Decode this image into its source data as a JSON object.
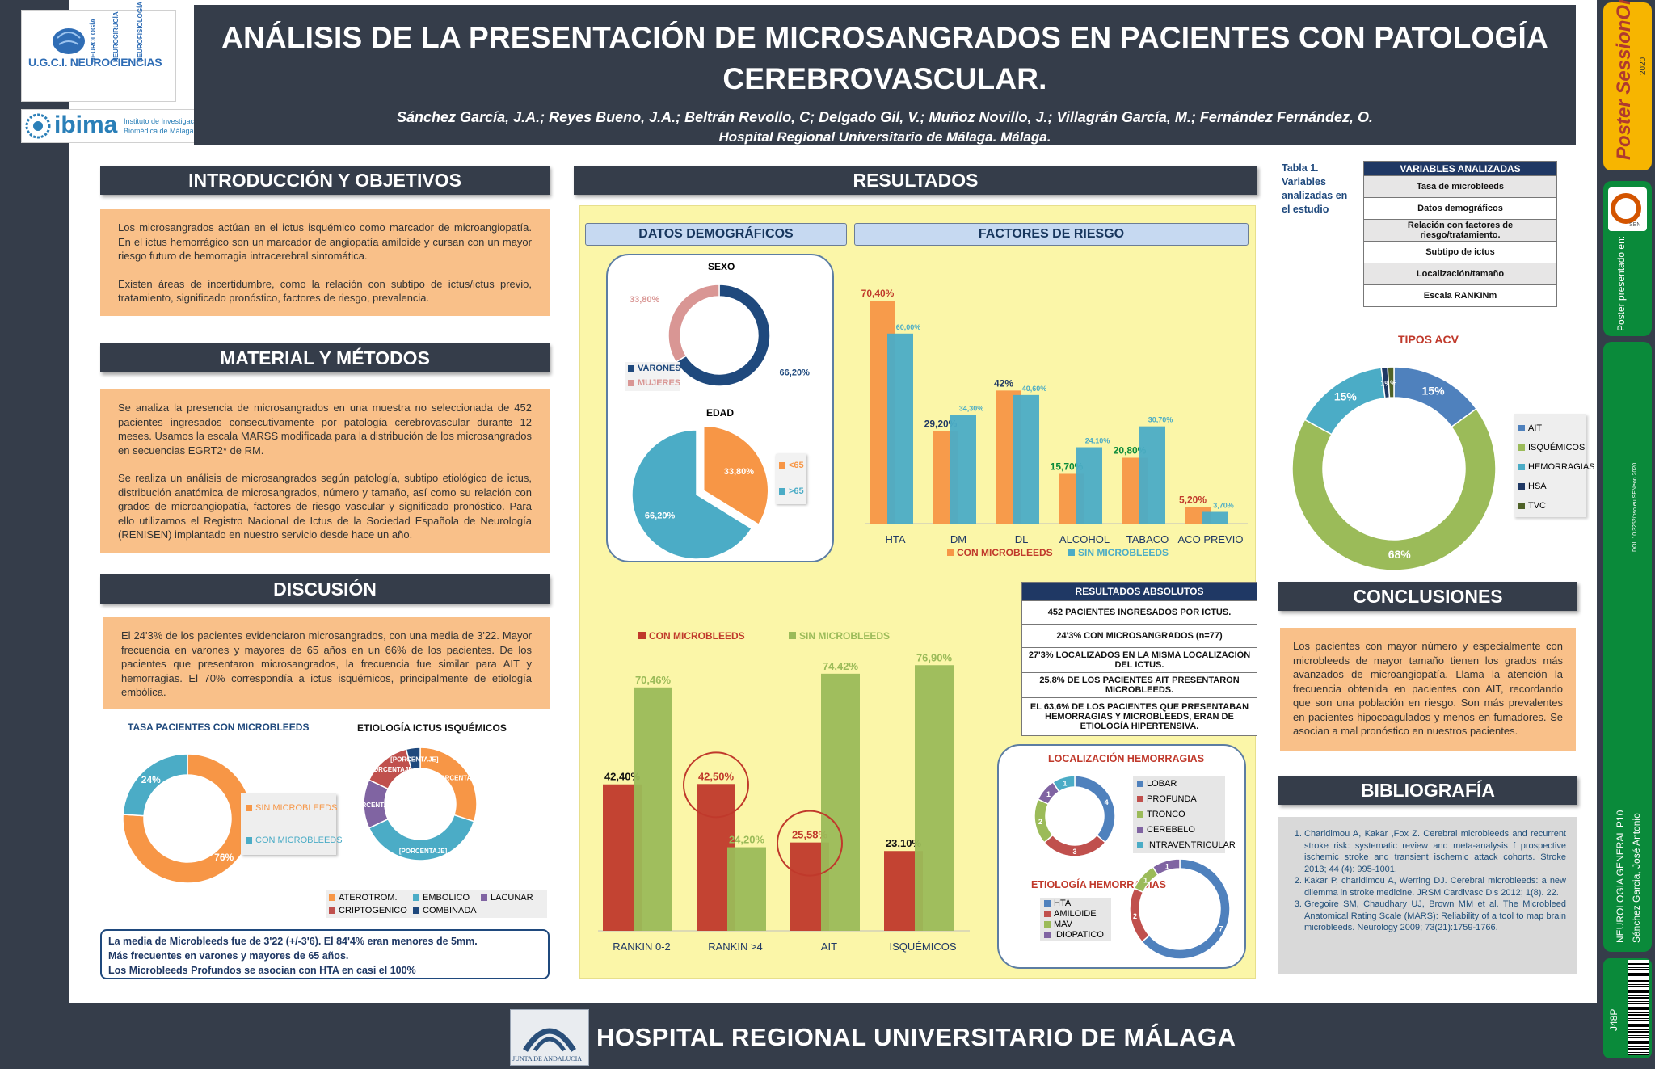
{
  "header": {
    "title_line1": "ANÁLISIS DE LA PRESENTACIÓN DE MICROSANGRADOS EN PACIENTES CON PATOLOGÍA",
    "title_line2": "CEREBROVASCULAR.",
    "authors": "Sánchez García, J.A.;  Reyes Bueno, J.A.; Beltrán Revollo, C; Delgado Gil, V.; Muñoz Novillo, J.; Villagrán García, M.; Fernández Fernández, O.",
    "hospital": "Hospital Regional Universitario de Málaga. Málaga."
  },
  "logos": {
    "ugci": "U.G.C.I. NEUROCIENCIAS",
    "ugci_words": [
      "NEUROLOGÍA",
      "NEUROCIRUGÍA",
      "NEUROFISIOLOGÍA"
    ],
    "ibima": "ibima",
    "ibima_sub1": "Instituto de Investigación",
    "ibima_sub2": "Biomédica de Málaga",
    "junta": "JUNTA DE ANDALUCIA"
  },
  "intro": {
    "heading": "INTRODUCCIÓN Y OBJETIVOS",
    "p1": "Los microsangrados actúan en el ictus isquémico como marcador de microangiopatía. En el ictus hemorrágico son un marcador de angiopatía amiloide y cursan con un mayor riesgo futuro de hemorragia intracerebral sintomática.",
    "p2": "Existen áreas de incertidumbre, como la relación con subtipo de ictus/ictus previo, tratamiento, significado pronóstico, factores de riesgo, prevalencia."
  },
  "methods": {
    "heading": "MATERIAL Y MÉTODOS",
    "p1": "Se analiza la presencia de microsangrados en una muestra no seleccionada de 452 pacientes ingresados consecutivamente por patología cerebrovascular durante 12 meses. Usamos la escala MARSS modificada para la distribución de los microsangrados en secuencias EGRT2* de RM.",
    "p2": "Se realiza un análisis de microsangrados según patología, subtipo etiológico de ictus, distribución anatómica de microsangrados, número y tamaño, así como su relación con grados de microangiopatía, factores de riesgo vascular y significado pronóstico. Para ello utilizamos el Registro Nacional de Ictus de la Sociedad Española de Neurología (RENISEN) implantado en nuestro servicio desde hace un año."
  },
  "discussion": {
    "heading": "DISCUSIÓN",
    "p1": "El 24'3% de los pacientes evidenciaron microsangrados, con una media de 3'22. Mayor frecuencia en varones y mayores de 65 años en un 66% de los pacientes. De los pacientes que presentaron microsangrados, la frecuencia fue similar para AIT y hemorragias. El 70% correspondía a ictus isquémicos, principalmente de etiología embólica."
  },
  "tasa": {
    "title": "TASA PACIENTES CON MICROBLEEDS",
    "legend": [
      "SIN MICROBLEEDS",
      "CON MICROBLEEDS"
    ],
    "labels": [
      "76%",
      "24%"
    ]
  },
  "etiologia": {
    "title": "ETIOLOGÍA ICTUS ISQUÉMICOS",
    "slice_label": "[PORCENTAJE]",
    "legend": [
      "ATEROTROM.",
      "EMBOLICO",
      "LACUNAR",
      "CRIPTOGENICO",
      "COMBINADA"
    ]
  },
  "summary": {
    "l1": "La media de Microbleeds fue de 3'22 (+/-3'6). El 84'4% eran menores de 5mm.",
    "l2": "Más frecuentes en varones y mayores de 65 años.",
    "l3": "Los Microbleeds Profundos se asocian con HTA en casi el 100%"
  },
  "results": {
    "heading": "RESULTADOS",
    "demo_heading": "DATOS DEMOGRÁFICOS",
    "risk_heading": "FACTORES DE RIESGO",
    "sexo": {
      "title": "SEXO",
      "varones": "66,20%",
      "mujeres": "33,80%",
      "legend": [
        "VARONES",
        "MUJERES"
      ]
    },
    "edad": {
      "title": "EDAD",
      "lt65": "33,80%",
      "gt65": "66,20%",
      "legend": [
        "<65",
        ">65"
      ]
    },
    "absolutos": {
      "title": "RESULTADOS ABSOLUTOS",
      "rows": [
        "452 PACIENTES INGRESADOS POR ICTUS.",
        "24'3% CON MICROSANGRADOS (n=77)",
        "27'3% LOCALIZADOS EN LA MISMA LOCALIZACIÓN DEL ICTUS.",
        "25,8% DE LOS PACIENTES AIT PRESENTARON MICROBLEEDS.",
        "EL 63,6% DE LOS PACIENTES QUE PRESENTABAN HEMORRAGIAS Y MICROBLEEDS, ERAN DE ETIOLOGÍA HIPERTENSIVA."
      ]
    },
    "loc_hem": {
      "title": "LOCALIZACIÓN HEMORRAGIAS",
      "legend": [
        "LOBAR",
        "PROFUNDA",
        "TRONCO",
        "CEREBELO",
        "INTRAVENTRICULAR"
      ],
      "labels": [
        "4",
        "3",
        "2",
        "1",
        "1"
      ]
    },
    "etio_hem": {
      "title": "ETIOLOGÍA HEMORRAGIAS",
      "legend": [
        "HTA",
        "AMILOIDE",
        "MAV",
        "IDIOPATICO"
      ],
      "labels": [
        "7",
        "2",
        "1",
        "1"
      ]
    }
  },
  "variables": {
    "caption": "Tabla 1. Variables analizadas en el estudio",
    "title": "VARIABLES ANALIZADAS",
    "rows": [
      "Tasa de microbleeds",
      "Datos demográficos",
      "Relación con factores de riesgo/tratamiento.",
      "Subtipo de ictus",
      "Localización/tamaño",
      "Escala RANKINm"
    ]
  },
  "tipos_acv": {
    "title": "TIPOS ACV",
    "legend": [
      "AIT",
      "ISQUÉMICOS",
      "HEMORRAGIAS",
      "HSA",
      "TVC"
    ],
    "labels": [
      "15%",
      "68%",
      "15%",
      "1%",
      "1%"
    ]
  },
  "conclusions": {
    "heading": "CONCLUSIONES",
    "text": "Los pacientes con mayor número y especialmente con microbleeds de mayor tamaño tienen los grados más avanzados de microangiopatía. Llama la atención la frecuencia obtenida en pacientes con AIT, recordando que son una población en riesgo. Son más prevalentes en pacientes hipocoagulados y menos en fumadores. Se asocian a mal pronóstico en nuestros pacientes."
  },
  "bibliography": {
    "heading": "BIBLIOGRAFÍA",
    "refs": [
      "Charidimou A, Kakar ,Fox Z. Cerebral microbleeds and recurrent stroke risk: systematic review and meta-analysis f prospective ischemic stroke and transient ischemic attack cohorts. Stroke 2013; 44 (4): 995-1001.",
      "Kakar P, charidimou A, Werring DJ. Cerebral microbleeds: a new dilemma in stroke medicine. JRSM Cardivasc Dis 2012; 1(8). 22.",
      "Gregoire SM, Chaudhary UJ, Brown MM et al. The Microbleed Anatomical Rating Scale (MARS): Reliability of a tool to map brain microbleeds. Neurology 2009; 73(21):1759-1766."
    ]
  },
  "footer": {
    "title": "HOSPITAL REGIONAL UNIVERSITARIO DE MÁLAGA"
  },
  "sidebar": {
    "poster_session": "Poster SessionOnline",
    "year": "2020",
    "presented": "Poster presentado en:",
    "doi": "DOI: 10.3252/pso.eu.SENeon.2020",
    "category": "NEUROLOGIA GENERAL P10",
    "author": "Sánchez Garcia, José Antonio",
    "code": "J48P",
    "sen": "SEN"
  },
  "chart_data": [
    {
      "type": "bar",
      "title": "",
      "categories": [
        "HTA",
        "DM",
        "DL",
        "ALCOHOL",
        "TABACO",
        "ACO PREVIO"
      ],
      "series": [
        {
          "name": "CON MICROBLEEDS",
          "values": [
            70.4,
            29.2,
            42,
            15.7,
            20.8,
            5.2
          ],
          "labels": [
            "70,40%",
            "29,20%",
            "42%",
            "15,70%",
            "20,80%",
            "5,20%"
          ]
        },
        {
          "name": "SIN MICROBLEEDS",
          "values": [
            60.0,
            34.3,
            40.6,
            24.1,
            30.7,
            3.7
          ],
          "labels": [
            "60,00%",
            "34,30%",
            "40,60%",
            "24,10%",
            "30,70%",
            "3,70%"
          ]
        }
      ],
      "ylim": [
        0,
        75
      ]
    },
    {
      "type": "bar",
      "title": "",
      "categories": [
        "RANKIN 0-2",
        "RANKIN >4",
        "AIT",
        "ISQUÉMICOS"
      ],
      "series": [
        {
          "name": "CON MICROBLEEDS",
          "values": [
            42.4,
            42.5,
            25.58,
            23.1
          ],
          "labels": [
            "42,40%",
            "42,50%",
            "25,58%",
            "23,10%"
          ]
        },
        {
          "name": "SIN MICROBLEEDS",
          "values": [
            70.46,
            24.2,
            74.42,
            76.9
          ],
          "labels": [
            "70,46%",
            "24,20%",
            "74,42%",
            "76,90%"
          ]
        }
      ],
      "ylim": [
        0,
        80
      ]
    },
    {
      "type": "pie",
      "title": "SEXO",
      "categories": [
        "VARONES",
        "MUJERES"
      ],
      "values": [
        66.2,
        33.8
      ]
    },
    {
      "type": "pie",
      "title": "EDAD",
      "categories": [
        "<65",
        ">65"
      ],
      "values": [
        33.8,
        66.2
      ]
    },
    {
      "type": "pie",
      "title": "TASA PACIENTES CON MICROBLEEDS",
      "categories": [
        "SIN MICROBLEEDS",
        "CON MICROBLEEDS"
      ],
      "values": [
        76,
        24
      ]
    },
    {
      "type": "pie",
      "title": "ETIOLOGÍA ICTUS ISQUÉMICOS",
      "categories": [
        "ATEROTROM.",
        "EMBOLICO",
        "LACUNAR",
        "CRIPTOGENICO",
        "COMBINADA"
      ],
      "values": [
        30,
        38,
        14,
        14,
        4
      ]
    },
    {
      "type": "pie",
      "title": "TIPOS ACV",
      "categories": [
        "AIT",
        "ISQUÉMICOS",
        "HEMORRAGIAS",
        "HSA",
        "TVC"
      ],
      "values": [
        15,
        68,
        15,
        1,
        1
      ]
    },
    {
      "type": "pie",
      "title": "LOCALIZACIÓN HEMORRAGIAS",
      "categories": [
        "LOBAR",
        "PROFUNDA",
        "TRONCO",
        "CEREBELO",
        "INTRAVENTRICULAR"
      ],
      "values": [
        4,
        3,
        2,
        1,
        1
      ]
    },
    {
      "type": "pie",
      "title": "ETIOLOGÍA HEMORRAGIAS",
      "categories": [
        "HTA",
        "AMILOIDE",
        "MAV",
        "IDIOPATICO"
      ],
      "values": [
        7,
        2,
        1,
        1
      ]
    }
  ],
  "colors": {
    "dark": "#353d4a",
    "orange": "#f79646",
    "teal": "#4bacc6",
    "red": "#c0392b",
    "green": "#9bbb59",
    "navy": "#1f497d",
    "pink": "#d99694"
  }
}
